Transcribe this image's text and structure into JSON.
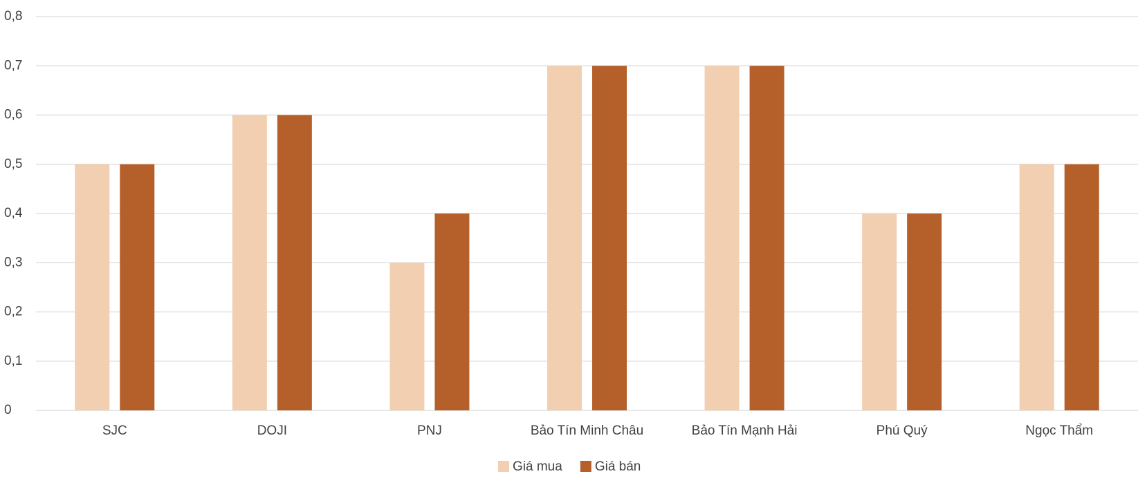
{
  "chart_data": {
    "type": "bar",
    "categories": [
      "SJC",
      "DOJI",
      "PNJ",
      "Bảo Tín Minh Châu",
      "Bảo Tín Mạnh Hải",
      "Phú Quý",
      "Ngọc Thẩm"
    ],
    "series": [
      {
        "name": "Giá mua",
        "color": "#f2cfb1",
        "values": [
          0.5,
          0.6,
          0.3,
          0.7,
          0.7,
          0.4,
          0.5
        ]
      },
      {
        "name": "Giá bán",
        "color": "#b5602a",
        "values": [
          0.5,
          0.6,
          0.4,
          0.7,
          0.7,
          0.4,
          0.5
        ]
      }
    ],
    "ylim": [
      0,
      0.8
    ],
    "yticks": [
      0,
      {
        "value": 0.1,
        "label": "0,1"
      },
      {
        "value": 0.2,
        "label": "0,2"
      },
      {
        "value": 0.3,
        "label": "0,3"
      },
      {
        "value": 0.4,
        "label": "0,4"
      },
      {
        "value": 0.5,
        "label": "0,5"
      },
      {
        "value": 0.6,
        "label": "0,6"
      },
      {
        "value": 0.7,
        "label": "0,7"
      },
      {
        "value": 0.8,
        "label": "0,8"
      }
    ],
    "grid": true,
    "legend": "bottom"
  }
}
